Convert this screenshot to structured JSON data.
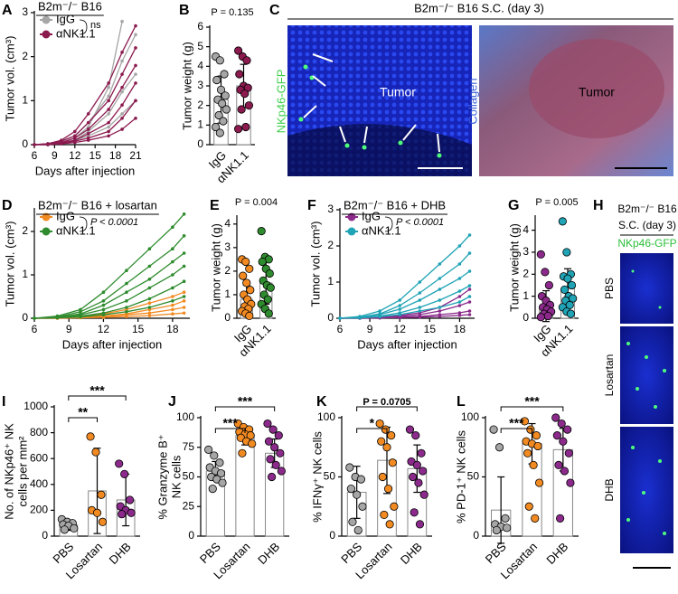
{
  "chart_data": [
    {
      "type": "line",
      "label": "A",
      "title": "B2m⁻/⁻ B16",
      "xlabel": "Days after injection",
      "ylabel": "Tumor vol. (cm³)",
      "x": [
        6,
        8,
        10,
        12,
        14,
        17,
        19,
        21
      ],
      "xlim": [
        6,
        21
      ],
      "xticks": [
        6,
        9,
        12,
        15,
        18,
        21
      ],
      "ylim": [
        0,
        3
      ],
      "yticks": [
        0,
        1,
        2,
        3
      ],
      "annotation": "ns",
      "series": [
        {
          "name": "IgG",
          "color": "#a6a6a6",
          "lines": [
            [
              0,
              0.02,
              0.05,
              0.15,
              0.4,
              1.3,
              2.8,
              null
            ],
            [
              0,
              0.02,
              0.08,
              0.2,
              0.5,
              1.1,
              1.9,
              2.5
            ],
            [
              0,
              0,
              0.05,
              0.1,
              0.3,
              0.7,
              1.2,
              1.6
            ],
            [
              0,
              0.01,
              0.04,
              0.1,
              0.2,
              0.4,
              0.7,
              1.0
            ]
          ]
        },
        {
          "name": "αNK1.1",
          "color": "#8b1a4f",
          "lines": [
            [
              0,
              0.02,
              0.1,
              0.3,
              0.7,
              1.4,
              2.1,
              2.7
            ],
            [
              0,
              0.02,
              0.08,
              0.2,
              0.5,
              1.0,
              1.6,
              2.2
            ],
            [
              0,
              0.01,
              0.05,
              0.15,
              0.35,
              0.8,
              1.3,
              1.8
            ],
            [
              0,
              0.01,
              0.04,
              0.1,
              0.25,
              0.5,
              0.9,
              1.4
            ],
            [
              0,
              0,
              0.03,
              0.08,
              0.15,
              0.3,
              0.6,
              1.0
            ],
            [
              0,
              0,
              0.02,
              0.05,
              0.1,
              0.2,
              0.35,
              0.6
            ]
          ]
        }
      ]
    },
    {
      "type": "bar",
      "label": "B",
      "annotation": "P = 0.135",
      "ylabel": "Tumor weight (g)",
      "categories": [
        "IgG",
        "αNK1.1"
      ],
      "values": [
        2.3,
        3.0
      ],
      "errors": [
        1.2,
        1.1
      ],
      "colors": [
        "#a6a6a6",
        "#8b1a4f"
      ],
      "ylim": [
        0,
        6
      ],
      "yticks": [
        0,
        1,
        2,
        3,
        4,
        5,
        6
      ],
      "points": [
        [
          4.5,
          4.3,
          3.6,
          3.3,
          2.8,
          2.5,
          2.3,
          2.1,
          1.8,
          1.5,
          1.2,
          0.9,
          0.6
        ],
        [
          4.8,
          4.5,
          4.3,
          3.6,
          3.0,
          2.9,
          2.8,
          2.6,
          2.0,
          1.8,
          0.9,
          0.8
        ]
      ]
    },
    {
      "type": "line",
      "label": "D",
      "title": "B2m⁻/⁻ B16 + losartan",
      "xlabel": "Days after injection",
      "ylabel": "Tumor vol. (cm³)",
      "x": [
        6,
        8,
        10,
        12,
        14,
        16,
        18,
        19
      ],
      "xlim": [
        6,
        19.5
      ],
      "xticks": [
        6,
        9,
        12,
        15,
        18
      ],
      "ylim": [
        0,
        2.5
      ],
      "yticks": [
        0,
        1,
        2
      ],
      "annotation": "P < 0.0001",
      "series": [
        {
          "name": "IgG",
          "color": "#f28a22",
          "lines": [
            [
              0,
              0.01,
              0.03,
              0.1,
              0.2,
              0.35,
              0.5,
              0.6
            ],
            [
              0,
              0.01,
              0.02,
              0.05,
              0.1,
              0.2,
              0.3,
              0.4
            ],
            [
              0,
              0,
              0.02,
              0.04,
              0.08,
              0.12,
              0.2,
              0.25
            ],
            [
              0,
              0,
              0.01,
              0.02,
              0.04,
              0.06,
              0.1,
              0.12
            ]
          ]
        },
        {
          "name": "αNK1.1",
          "color": "#2e8b2e",
          "lines": [
            [
              0,
              0.05,
              0.2,
              0.6,
              1.1,
              1.6,
              2.1,
              2.4
            ],
            [
              0,
              0.03,
              0.15,
              0.4,
              0.8,
              1.2,
              1.6,
              1.9
            ],
            [
              0,
              0.02,
              0.1,
              0.3,
              0.6,
              0.9,
              1.3,
              1.5
            ],
            [
              0,
              0.02,
              0.08,
              0.2,
              0.4,
              0.7,
              1.0,
              1.2
            ],
            [
              0,
              0.01,
              0.05,
              0.12,
              0.25,
              0.45,
              0.7,
              0.85
            ],
            [
              0,
              0.01,
              0.03,
              0.08,
              0.15,
              0.25,
              0.4,
              0.5
            ]
          ]
        }
      ]
    },
    {
      "type": "bar",
      "label": "E",
      "annotation": "P = 0.004",
      "ylabel": "Tumor weight (g)",
      "categories": [
        "IgG",
        "αNK1.1"
      ],
      "values": [
        0.8,
        1.5
      ],
      "errors": [
        0.6,
        0.9
      ],
      "colors": [
        "#f28a22",
        "#2e8b2e"
      ],
      "ylim": [
        0,
        4.3
      ],
      "yticks": [
        0,
        1,
        2,
        3,
        4
      ],
      "points": [
        [
          2.5,
          2.4,
          2.1,
          1.8,
          1.5,
          1.2,
          1.0,
          0.8,
          0.6,
          0.5,
          0.4,
          0.3,
          0.2,
          0.1
        ],
        [
          3.7,
          2.6,
          2.5,
          2.4,
          2.1,
          1.9,
          1.6,
          1.4,
          1.3,
          1.0,
          0.8,
          0.6,
          0.4,
          0.2
        ]
      ]
    },
    {
      "type": "line",
      "label": "F",
      "title": "B2m⁻/⁻ B16 + DHB",
      "xlabel": "Days after injection",
      "ylabel": "Tumor vol. (cm³)",
      "x": [
        6,
        8,
        10,
        12,
        14,
        16,
        18,
        19
      ],
      "xlim": [
        6,
        19.5
      ],
      "xticks": [
        6,
        9,
        12,
        15,
        18
      ],
      "ylim": [
        0,
        3
      ],
      "yticks": [
        0,
        1,
        2,
        3
      ],
      "annotation": "P < 0.0001",
      "series": [
        {
          "name": "IgG",
          "color": "#8b2a8b",
          "lines": [
            [
              0,
              0.01,
              0.03,
              0.08,
              0.15,
              0.3,
              0.6,
              0.8
            ],
            [
              0,
              0.01,
              0.02,
              0.05,
              0.1,
              0.2,
              0.35,
              0.45
            ],
            [
              0,
              0,
              0.01,
              0.03,
              0.05,
              0.1,
              0.15,
              0.2
            ],
            [
              0,
              0,
              0.01,
              0.02,
              0.03,
              0.05,
              0.08,
              0.1
            ]
          ]
        },
        {
          "name": "αNK1.1",
          "color": "#1fa3b5",
          "lines": [
            [
              0,
              0.05,
              0.2,
              0.5,
              1.0,
              1.5,
              2.0,
              2.3
            ],
            [
              0,
              0.03,
              0.12,
              0.35,
              0.7,
              1.1,
              1.5,
              1.8
            ],
            [
              0,
              0.02,
              0.1,
              0.25,
              0.5,
              0.8,
              1.1,
              1.3
            ],
            [
              0,
              0.01,
              0.06,
              0.15,
              0.3,
              0.5,
              0.75,
              0.9
            ],
            [
              0,
              0.01,
              0.04,
              0.1,
              0.2,
              0.3,
              0.45,
              0.6
            ]
          ]
        }
      ]
    },
    {
      "type": "bar",
      "label": "G",
      "annotation": "P = 0.005",
      "ylabel": "Tumor weight (g)",
      "categories": [
        "IgG",
        "αNK1.1"
      ],
      "values": [
        0.55,
        1.35
      ],
      "errors": [
        0.7,
        0.9
      ],
      "colors": [
        "#8b2a8b",
        "#1fa3b5"
      ],
      "ylim": [
        0,
        4.6
      ],
      "yticks": [
        0,
        1,
        2,
        3,
        4
      ],
      "points": [
        [
          2.9,
          2.1,
          1.5,
          1.0,
          0.8,
          0.6,
          0.5,
          0.4,
          0.3,
          0.2,
          0.1,
          0.05
        ],
        [
          4.4,
          3.0,
          2.0,
          1.9,
          1.8,
          1.5,
          1.3,
          1.0,
          0.9,
          0.8,
          0.6,
          0.5,
          0.3,
          0.2
        ]
      ]
    },
    {
      "type": "bar",
      "label": "I",
      "ylabel": [
        "No. of NKp46⁺ NK",
        "cells per mm²"
      ],
      "categories": [
        "PBS",
        "Losartan",
        "DHB"
      ],
      "values": [
        85,
        350,
        280
      ],
      "errors": [
        40,
        330,
        200
      ],
      "colors": [
        "#a6a6a6",
        "#f28a22",
        "#8b2a8b"
      ],
      "ylim": [
        0,
        1000
      ],
      "yticks": [
        0,
        200,
        400,
        600,
        800,
        1000
      ],
      "points": [
        [
          130,
          110,
          100,
          90,
          80,
          60,
          50
        ],
        [
          770,
          650,
          320,
          200,
          180,
          110
        ],
        [
          560,
          480,
          280,
          230,
          200,
          180,
          170
        ]
      ],
      "comparisons": [
        {
          "from": "PBS",
          "to": "Losartan",
          "label": "**"
        },
        {
          "from": "PBS",
          "to": "DHB",
          "label": "***"
        }
      ]
    },
    {
      "type": "bar",
      "label": "J",
      "ylabel": [
        "% Granzyme B⁺",
        "NK cells"
      ],
      "categories": [
        "PBS",
        "Losartan",
        "DHB"
      ],
      "values": [
        55,
        85,
        70
      ],
      "errors": [
        8,
        8,
        12
      ],
      "colors": [
        "#a6a6a6",
        "#f28a22",
        "#8b2a8b"
      ],
      "ylim": [
        0,
        100
      ],
      "yticks": [
        0,
        25,
        50,
        75,
        100
      ],
      "points": [
        [
          73,
          68,
          62,
          58,
          55,
          53,
          50,
          48,
          45,
          40
        ],
        [
          95,
          92,
          90,
          88,
          86,
          85,
          83,
          80,
          78,
          70
        ],
        [
          95,
          90,
          85,
          80,
          75,
          70,
          65,
          60,
          55,
          50
        ]
      ],
      "comparisons": [
        {
          "from": "PBS",
          "to": "Losartan",
          "label": "***"
        },
        {
          "from": "PBS",
          "to": "DHB",
          "label": "***"
        }
      ]
    },
    {
      "type": "bar",
      "label": "K",
      "ylabel": "% IFNγ⁺ NK cells",
      "categories": [
        "PBS",
        "Losartan",
        "DHB"
      ],
      "values": [
        37,
        64,
        57
      ],
      "errors": [
        22,
        28,
        20
      ],
      "colors": [
        "#a6a6a6",
        "#f28a22",
        "#8b2a8b"
      ],
      "ylim": [
        0,
        100
      ],
      "yticks": [
        0,
        50,
        100
      ],
      "points": [
        [
          58,
          50,
          48,
          40,
          35,
          25,
          12,
          5
        ],
        [
          95,
          90,
          85,
          80,
          75,
          62,
          50,
          40,
          25,
          18,
          10
        ],
        [
          90,
          85,
          70,
          63,
          60,
          55,
          50,
          45,
          35,
          20,
          10
        ]
      ],
      "comparisons": [
        {
          "from": "PBS",
          "to": "Losartan",
          "label": "*"
        },
        {
          "from": "PBS",
          "to": "DHB",
          "label": "P = 0.0705"
        }
      ]
    },
    {
      "type": "bar",
      "label": "L",
      "ylabel": "% PD-1⁺ NK cells",
      "categories": [
        "PBS",
        "Losartan",
        "DHB"
      ],
      "values": [
        22,
        78,
        73
      ],
      "errors": [
        28,
        17,
        18
      ],
      "colors": [
        "#a6a6a6",
        "#f28a22",
        "#8b2a8b"
      ],
      "ylim": [
        0,
        100
      ],
      "yticks": [
        0,
        50,
        100
      ],
      "points": [
        [
          90,
          75,
          15,
          10,
          8,
          7,
          5
        ],
        [
          97,
          90,
          85,
          80,
          78,
          76,
          70,
          60,
          45,
          25,
          15
        ],
        [
          100,
          95,
          90,
          85,
          80,
          70,
          60,
          55,
          45,
          15
        ]
      ],
      "comparisons": [
        {
          "from": "PBS",
          "to": "Losartan",
          "label": "***"
        },
        {
          "from": "PBS",
          "to": "DHB",
          "label": "***"
        }
      ]
    }
  ],
  "image_panels": [
    {
      "label": "C",
      "title": "B2m⁻/⁻ B16 S.C. (day 3)",
      "marker": "NKp46-GFP",
      "region": "Tumor",
      "stain": "Collagen"
    },
    {
      "label": "H",
      "title": [
        "B2m⁻/⁻ B16",
        "S.C. (day 3)"
      ],
      "marker": "NKp46-GFP",
      "rows": [
        "PBS",
        "Losartan",
        "DHB"
      ]
    }
  ]
}
